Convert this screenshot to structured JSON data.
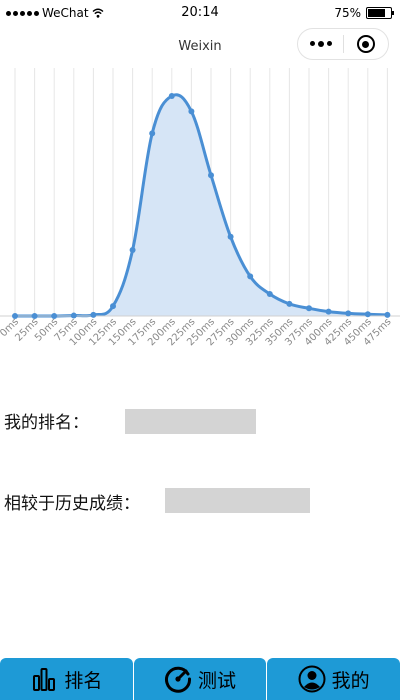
{
  "status_bar": {
    "carrier": "WeChat",
    "time": "20:14",
    "battery": "75%",
    "battery_level": 0.75
  },
  "nav": {
    "title": "Weixin",
    "more_icon": "more-dots-icon",
    "close_icon": "target-circle-icon"
  },
  "chart_data": {
    "type": "area",
    "categories": [
      "0ms",
      "25ms",
      "50ms",
      "75ms",
      "100ms",
      "125ms",
      "150ms",
      "175ms",
      "200ms",
      "225ms",
      "250ms",
      "275ms",
      "300ms",
      "325ms",
      "350ms",
      "375ms",
      "400ms",
      "425ms",
      "450ms",
      "475ms"
    ],
    "values": [
      0,
      0,
      0,
      0.2,
      0.5,
      4.5,
      30,
      83,
      100,
      93,
      64,
      36,
      18,
      10,
      5.5,
      3.5,
      2,
      1.2,
      0.8,
      0.5
    ],
    "ylim": [
      0,
      100
    ],
    "grid": true,
    "colors": {
      "line": "#4a8fd4",
      "fill": "#d6e5f6",
      "grid": "#e6e6e6"
    }
  },
  "rows": [
    {
      "label": "我的排名："
    },
    {
      "label": "相较于历史成绩："
    }
  ],
  "tabs": [
    {
      "label": "排名",
      "icon": "bar-chart-icon"
    },
    {
      "label": "测试",
      "icon": "speedometer-icon"
    },
    {
      "label": "我的",
      "icon": "user-avatar-icon"
    }
  ],
  "colors": {
    "tab_bg": "#1e9ad6",
    "placeholder": "#d4d4d4"
  }
}
